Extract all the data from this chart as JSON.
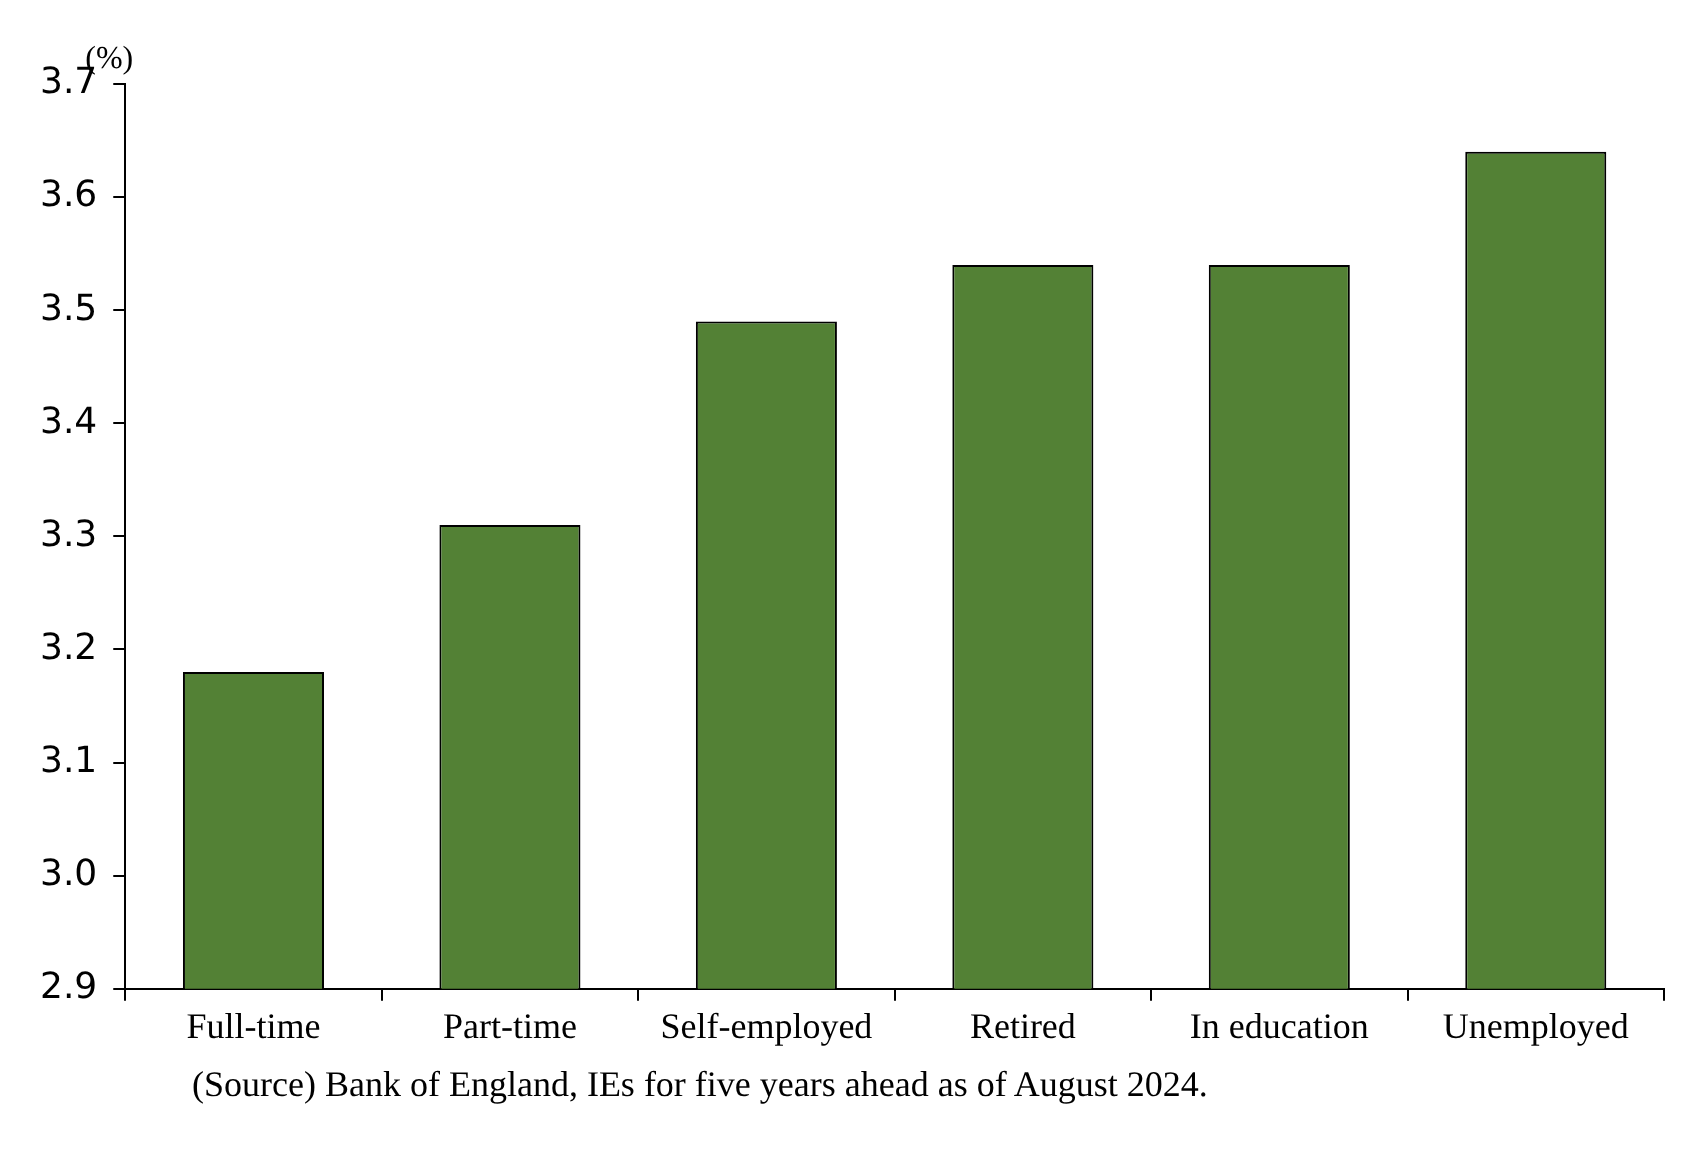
{
  "chart_data": {
    "type": "bar",
    "ylabel": "(%)",
    "categories": [
      "Full-time",
      "Part-time",
      "Self-employed",
      "Retired",
      "In education",
      "Unemployed"
    ],
    "values": [
      3.18,
      3.31,
      3.49,
      3.54,
      3.54,
      3.64
    ],
    "color": "#538135",
    "ylim": [
      2.9,
      3.7
    ],
    "yticks": [
      2.9,
      {
        "value": 3,
        "label": "3.0"
      },
      3.1,
      3.2,
      3.3,
      3.4,
      3.5,
      3.6,
      3.7
    ],
    "grid": false,
    "legend": false,
    "annotations": [
      "(Source) Bank of England, IEs for five years ahead as of August 2024."
    ]
  }
}
